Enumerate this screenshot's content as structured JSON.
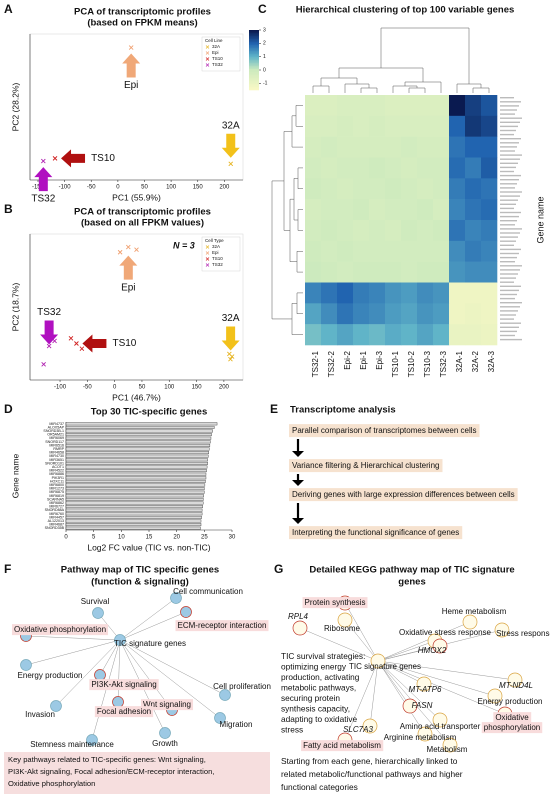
{
  "panel_letters": [
    "A",
    "B",
    "C",
    "D",
    "E",
    "F",
    "G"
  ],
  "chart_data": [
    {
      "type": "scatter",
      "title": "PCA of transcriptomic profiles",
      "subtitle": "(based on FPKM means)",
      "xlabel": "PC1 (55.9%)",
      "ylabel": "PC2 (28.2%)",
      "xlim": [
        -165,
        235
      ],
      "xticks": [
        -150,
        -100,
        -50,
        0,
        50,
        100,
        150,
        200
      ],
      "ylim": [
        -70,
        200
      ],
      "legend_title": "Cell Line",
      "legend": "upper right",
      "series": [
        {
          "name": "32A",
          "color": "#e6b422",
          "arrow_color": "#f2c11a",
          "arrow": "down",
          "x": [
            212
          ],
          "values": [
            -40
          ]
        },
        {
          "name": "Epi",
          "color": "#f0a070",
          "arrow_color": "#f0a878",
          "arrow": "up",
          "x": [
            25
          ],
          "values": [
            175
          ]
        },
        {
          "name": "TS10",
          "color": "#d02020",
          "arrow_color": "#b01010",
          "arrow": "left",
          "x": [
            -118
          ],
          "values": [
            -30
          ]
        },
        {
          "name": "TS32",
          "color": "#b020b0",
          "arrow_color": "#b010c0",
          "arrow": "up",
          "x": [
            -140
          ],
          "values": [
            -35
          ]
        }
      ]
    },
    {
      "type": "scatter",
      "title": "PCA of transcriptomic profiles",
      "subtitle": "(based on all FPKM values)",
      "annotation": "N = 3",
      "xlabel": "PC1 (46.7%)",
      "ylabel": "PC2 (18.7%)",
      "xlim": [
        -155,
        235
      ],
      "xticks": [
        -100,
        -50,
        0,
        50,
        100,
        150,
        200
      ],
      "ylim": [
        -110,
        170
      ],
      "legend_title": "Cell Type",
      "legend": "upper right",
      "series": [
        {
          "name": "32A",
          "color": "#e6b422",
          "arrow_color": "#f2c11a",
          "arrow": "down",
          "x": [
            210,
            212,
            215
          ],
          "values": [
            -60,
            -70,
            -65
          ]
        },
        {
          "name": "Epi",
          "color": "#f0a070",
          "arrow_color": "#f0a878",
          "arrow": "up",
          "x": [
            10,
            25,
            40
          ],
          "values": [
            135,
            145,
            140
          ]
        },
        {
          "name": "TS10",
          "color": "#d02020",
          "arrow_color": "#b01010",
          "arrow": "left",
          "x": [
            -70,
            -80,
            -60
          ],
          "values": [
            -40,
            -30,
            -50
          ]
        },
        {
          "name": "TS32",
          "color": "#b020b0",
          "arrow_color": "#b010c0",
          "arrow": "down",
          "x": [
            -120,
            -110,
            -130
          ],
          "values": [
            -45,
            -35,
            -80
          ]
        }
      ]
    },
    {
      "type": "heatmap",
      "title": "Hierarchical clustering of top 100 variable genes",
      "ylabel": "Gene name",
      "columns": [
        "TS32-1",
        "TS32-2",
        "Epi-2",
        "Epi-1",
        "Epi-3",
        "TS10-1",
        "TS10-2",
        "TS10-3",
        "TS32-3",
        "32A-1",
        "32A-2",
        "32A-3"
      ],
      "clim": [
        -1.5,
        3
      ],
      "cticks": [
        3,
        2,
        1,
        0,
        -1
      ],
      "z": [
        [
          -0.5,
          -0.5,
          -0.4,
          -0.4,
          -0.4,
          -0.5,
          -0.5,
          -0.5,
          -0.5,
          3,
          2.5,
          2.2
        ],
        [
          -0.4,
          -0.4,
          -0.3,
          -0.4,
          -0.3,
          -0.4,
          -0.4,
          -0.4,
          -0.4,
          2,
          2.6,
          2.4
        ],
        [
          -0.3,
          -0.2,
          -0.3,
          -0.3,
          -0.3,
          -0.3,
          -0.2,
          -0.3,
          -0.3,
          1.8,
          2,
          2
        ],
        [
          -0.2,
          -0.3,
          -0.2,
          -0.2,
          -0.1,
          -0.2,
          -0.3,
          -0.2,
          -0.2,
          1.9,
          1.7,
          2.1
        ],
        [
          -0.1,
          -0.2,
          -0.3,
          -0.2,
          -0.2,
          -0.1,
          -0.2,
          -0.3,
          -0.2,
          1.7,
          1.9,
          1.8
        ],
        [
          -0.3,
          -0.2,
          -0.2,
          -0.1,
          -0.3,
          -0.2,
          -0.2,
          -0.1,
          -0.3,
          1.6,
          1.8,
          1.9
        ],
        [
          -0.2,
          -0.1,
          -0.2,
          -0.3,
          -0.2,
          -0.3,
          -0.1,
          -0.2,
          -0.1,
          1.8,
          1.6,
          1.7
        ],
        [
          -0.1,
          -0.2,
          -0.1,
          -0.2,
          -0.2,
          -0.2,
          -0.2,
          -0.2,
          -0.2,
          1.5,
          1.7,
          1.6
        ],
        [
          0.0,
          -0.1,
          -0.2,
          -0.1,
          -0.1,
          -0.1,
          -0.2,
          -0.1,
          -0.1,
          1.4,
          1.5,
          1.5
        ],
        [
          1.6,
          1.8,
          2.0,
          1.7,
          1.6,
          1.4,
          1.3,
          1.5,
          1.4,
          -1.2,
          -1.2,
          -1.2
        ],
        [
          1.2,
          1.5,
          1.8,
          1.6,
          1.5,
          1.3,
          1.2,
          1.4,
          1.3,
          -1.2,
          -1.1,
          -1.2
        ],
        [
          0.8,
          1.0,
          1.2,
          1.0,
          0.9,
          1.1,
          1.0,
          1.2,
          1.0,
          -1.0,
          -1.0,
          -1.1
        ]
      ]
    },
    {
      "type": "bar",
      "horizontal": true,
      "title": "Top 30 TIC-specific genes",
      "xlabel": "Log2 FC value (TIC vs. non-TIC)",
      "ylabel": "Gene name",
      "color": "#d9d9d9",
      "xlim": [
        0,
        30
      ],
      "xticks": [
        0,
        5,
        10,
        15,
        20,
        25,
        30
      ],
      "categories": [
        "MIR4737",
        "ALOX5AP",
        "SNORD3B-1",
        "OR5AM21",
        "MIR6069",
        "SNORD117",
        "MIR6516",
        "RMRP",
        "MIR4658",
        "MIR4730",
        "MIR3651",
        "SNORD101",
        "ACOT1",
        "MIR4522",
        "MIR6886",
        "PIK3R1",
        "HOXC11",
        "MIR6800",
        "MIR1273",
        "MIR6875",
        "MIR6819",
        "SCARNA5",
        "MIR6862",
        "MIR6727",
        "SNORD88A",
        "MIR6760",
        "MIR4457",
        "AL122013",
        "MIR4687",
        "SNORD35B"
      ],
      "values": [
        27.3,
        26.8,
        26.5,
        26.3,
        26.2,
        26.1,
        26.0,
        25.9,
        25.8,
        25.7,
        25.6,
        25.6,
        25.5,
        25.4,
        25.3,
        25.3,
        25.2,
        25.1,
        25.0,
        25.0,
        24.9,
        24.8,
        24.8,
        24.7,
        24.6,
        24.6,
        24.5,
        24.4,
        24.4,
        24.3
      ]
    }
  ],
  "workflow": {
    "title": "Transcriptome analysis",
    "steps": [
      "Parallel comparison of transcriptomes between cells",
      "Variance filtering & Hierarchical clustering",
      "Deriving genes with large expression differences between cells",
      "Interpreting the functional significance of genes"
    ]
  },
  "pathway_map": {
    "title": [
      "Pathway map of TIC specific genes",
      "(function & signaling)"
    ],
    "nodes": [
      {
        "label": "Survival"
      },
      {
        "label": "Cell communication"
      },
      {
        "label": "ECM-receptor interaction",
        "highlight": true
      },
      {
        "label": "Oxidative phosphorylation",
        "highlight": true
      },
      {
        "label": "TIC signature genes"
      },
      {
        "label": "Energy production"
      },
      {
        "label": "PI3K-Akt signaling",
        "highlight": true
      },
      {
        "label": "Wnt signaling",
        "highlight": true
      },
      {
        "label": "Cell proliferation"
      },
      {
        "label": "Focal adhesion",
        "highlight": true
      },
      {
        "label": "Invasion"
      },
      {
        "label": "Migration"
      },
      {
        "label": "Growth"
      },
      {
        "label": "Stemness maintenance"
      }
    ],
    "caption": [
      "Key pathways related to TIC-specific genes: Wnt signaling,",
      "PI3K-Akt signaling, Focal adhesion/ECM-receptor interaction,",
      "Oxidative phosphorylation"
    ]
  },
  "kegg_map": {
    "title": [
      "Detailed KEGG pathway map of TIC signature",
      "genes"
    ],
    "nodes": [
      {
        "label": "Protein synthesis",
        "highlight": true
      },
      {
        "label": "RPL4",
        "highlight": true,
        "gene": true
      },
      {
        "label": "Ribosome"
      },
      {
        "label": "Heme metabolism"
      },
      {
        "label": "Oxidative stress response"
      },
      {
        "label": "Stress response"
      },
      {
        "label": "HMOX2",
        "highlight": true,
        "gene": true
      },
      {
        "label": "TIC signature genes"
      },
      {
        "label": "MT-ND4L",
        "gene": true
      },
      {
        "label": "MT-ATP6",
        "gene": true
      },
      {
        "label": "Energy production"
      },
      {
        "label": "FASN",
        "highlight": true,
        "gene": true
      },
      {
        "label": [
          "Oxidative",
          "phosphorylation"
        ],
        "highlight": true
      },
      {
        "label": "SLC7A3",
        "gene": true
      },
      {
        "label": "Amino acid transporter"
      },
      {
        "label": "Arginine metabolism"
      },
      {
        "label": "Fatty acid metabolism",
        "highlight": true
      },
      {
        "label": "Metabolism"
      }
    ],
    "strategies": [
      "TIC survival strategies:",
      "optimizing energy",
      "production, activating",
      "metabolic pathways,",
      "securing protein",
      "synthesis capacity,",
      "adapting to oxidative",
      "stress"
    ],
    "caption": [
      "Starting from each gene, hierarchically linked to",
      "related metabolic/functional pathways and higher",
      "functional categories"
    ]
  }
}
